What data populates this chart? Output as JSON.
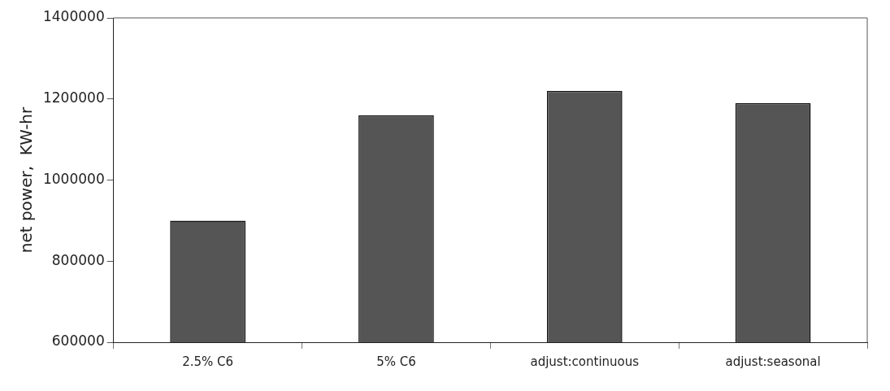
{
  "chart_data": {
    "type": "bar",
    "ylabel": "net power,  KW-hr",
    "categories": [
      "2.5% C6",
      "5% C6",
      "adjust:continuous",
      "adjust:seasonal"
    ],
    "values": [
      900000,
      1160000,
      1220000,
      1190000
    ],
    "color": "#555555",
    "ylim": [
      600000,
      1400000
    ],
    "yticks": [
      600000,
      800000,
      1000000,
      1200000,
      1400000
    ],
    "grid": false,
    "legend": false
  }
}
